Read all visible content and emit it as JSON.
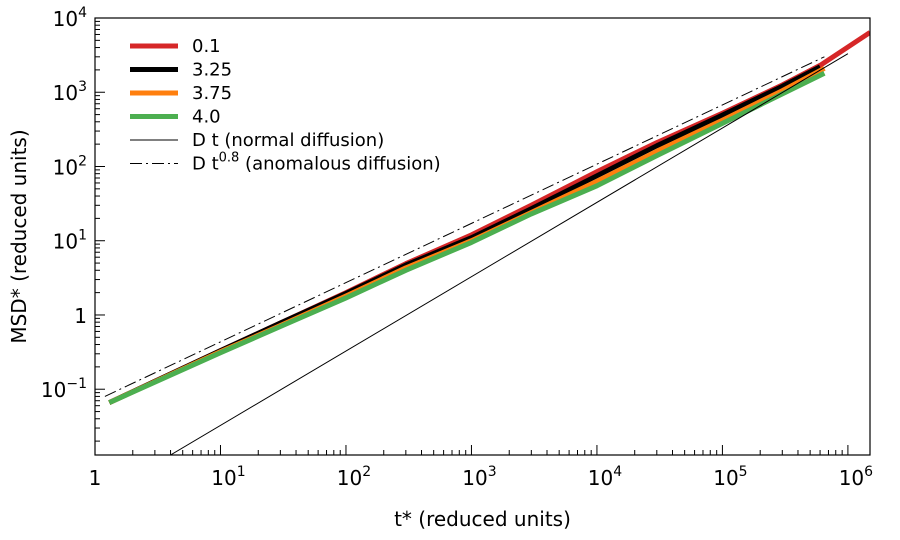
{
  "chart_data": {
    "type": "line",
    "xscale": "log",
    "yscale": "log",
    "xlabel": "t* (reduced units)",
    "ylabel": "MSD*  (reduced units)",
    "xlim": [
      1,
      1500000
    ],
    "ylim": [
      0.013,
      10000
    ],
    "grid": false,
    "legend_position": "top-left",
    "x_ticks": [
      {
        "value": 1,
        "base": "1",
        "exp": ""
      },
      {
        "value": 10,
        "base": "10",
        "exp": "1"
      },
      {
        "value": 100,
        "base": "10",
        "exp": "2"
      },
      {
        "value": 1000,
        "base": "10",
        "exp": "3"
      },
      {
        "value": 10000,
        "base": "10",
        "exp": "4"
      },
      {
        "value": 100000,
        "base": "10",
        "exp": "5"
      },
      {
        "value": 1000000,
        "base": "10",
        "exp": "6"
      }
    ],
    "y_ticks": [
      {
        "value": 0.1,
        "base": "10",
        "exp": "−1"
      },
      {
        "value": 1,
        "base": "1",
        "exp": ""
      },
      {
        "value": 10,
        "base": "10",
        "exp": "1"
      },
      {
        "value": 100,
        "base": "10",
        "exp": "2"
      },
      {
        "value": 1000,
        "base": "10",
        "exp": "3"
      },
      {
        "value": 10000,
        "base": "10",
        "exp": "4"
      }
    ],
    "series": [
      {
        "name": "0.1",
        "color": "#d62728",
        "style": "solid",
        "width": 5,
        "x": [
          1.3,
          10,
          30,
          100,
          300,
          1000,
          3000,
          10000,
          30000,
          100000,
          300000,
          600000,
          1500000
        ],
        "y": [
          0.066,
          0.33,
          0.78,
          2.0,
          4.9,
          12.0,
          30.0,
          85.0,
          210.0,
          520.0,
          1250.0,
          2300.0,
          6400.0
        ]
      },
      {
        "name": "3.25",
        "color": "#000000",
        "style": "solid",
        "width": 5,
        "x": [
          1.3,
          10,
          30,
          100,
          300,
          1000,
          3000,
          10000,
          30000,
          100000,
          300000,
          600000
        ],
        "y": [
          0.066,
          0.33,
          0.78,
          1.95,
          4.7,
          11.0,
          27.0,
          75.0,
          190.0,
          490.0,
          1200.0,
          2200.0
        ]
      },
      {
        "name": "3.75",
        "color": "#ff7f0e",
        "style": "solid",
        "width": 5,
        "x": [
          1.3,
          10,
          30,
          100,
          300,
          1000,
          3000,
          10000,
          30000,
          100000,
          300000,
          650000
        ],
        "y": [
          0.066,
          0.32,
          0.72,
          1.8,
          4.3,
          10.0,
          24.0,
          63.0,
          160.0,
          420.0,
          1050.0,
          2100.0
        ]
      },
      {
        "name": "4.0",
        "color": "#4caf50",
        "style": "solid",
        "width": 5,
        "x": [
          1.3,
          10,
          30,
          100,
          300,
          1000,
          3000,
          10000,
          30000,
          100000,
          300000,
          650000
        ],
        "y": [
          0.066,
          0.31,
          0.7,
          1.7,
          4.0,
          9.5,
          23.0,
          55.0,
          140.0,
          380.0,
          950.0,
          1800.0
        ]
      },
      {
        "name": "D t (normal diffusion)",
        "color": "#000000",
        "style": "solid",
        "width": 1,
        "x": [
          4,
          1000000
        ],
        "y": [
          0.013,
          3300
        ]
      },
      {
        "name": "D t0.8 (anomalous diffusion)",
        "color": "#000000",
        "style": "dashdot",
        "width": 1,
        "x": [
          1.2,
          650000
        ],
        "y": [
          0.08,
          3000
        ]
      }
    ]
  },
  "legend": [
    {
      "label": "0.1",
      "sup": "",
      "suffix": ""
    },
    {
      "label": "3.25",
      "sup": "",
      "suffix": ""
    },
    {
      "label": "3.75",
      "sup": "",
      "suffix": ""
    },
    {
      "label": "4.0",
      "sup": "",
      "suffix": ""
    },
    {
      "label": "D t (normal diffusion)",
      "sup": "",
      "suffix": ""
    },
    {
      "label": "D t",
      "sup": "0.8",
      "suffix": " (anomalous diffusion)"
    }
  ]
}
